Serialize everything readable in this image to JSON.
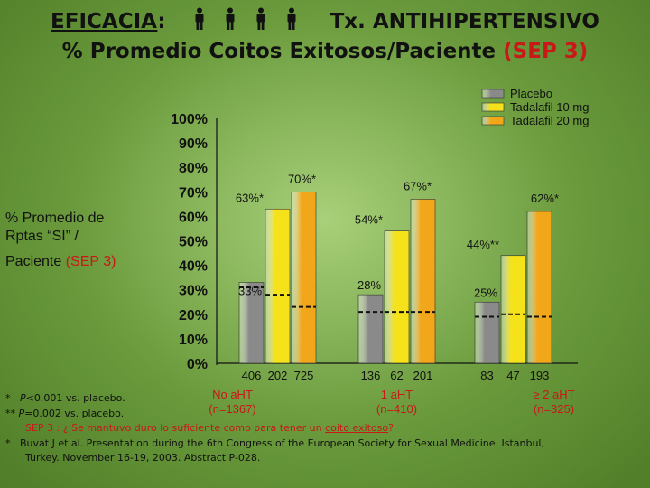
{
  "header": {
    "line1_prefix": "EFICACIA",
    "line1_colon": ":",
    "line1_suffix": "Tx. ANTIHIPERTENSIVO",
    "line2_main": "% Promedio Coitos Exitosos/Paciente",
    "line2_highlight": "(SEP 3)",
    "person_icon_count": 4
  },
  "y_axis_label": {
    "line1": "% Promedio de",
    "line2": "Rptas “SI” /",
    "line3": "Paciente",
    "line3_highlight": "(SEP 3)"
  },
  "chart_data": {
    "type": "bar",
    "y_ticks": [
      "0%",
      "10%",
      "20%",
      "30%",
      "40%",
      "50%",
      "60%",
      "70%",
      "80%",
      "90%",
      "100%"
    ],
    "ylim": [
      0,
      100
    ],
    "legend_position": "top-right",
    "series": [
      {
        "name": "Placebo",
        "color": "#8a8a8a"
      },
      {
        "name": "Tadalafil 10 mg",
        "color": "#f5e21a"
      },
      {
        "name": "Tadalafil 20 mg",
        "color": "#f2a71b"
      }
    ],
    "groups": [
      {
        "values": [
          33,
          63,
          70
        ],
        "labels": [
          "33%",
          "63%*",
          "70%*"
        ],
        "n_values": [
          "406",
          "202",
          "725"
        ],
        "category": "No aHT",
        "n_total": "(n=1367)"
      },
      {
        "values": [
          28,
          54,
          67
        ],
        "labels": [
          "28%",
          "54%*",
          "67%*"
        ],
        "n_values": [
          "136",
          "62",
          "201"
        ],
        "category": "1 aHT",
        "n_total": "(n=410)"
      },
      {
        "values": [
          25,
          44,
          62
        ],
        "labels": [
          "25%",
          "44%**",
          "62%*"
        ],
        "n_values": [
          "83",
          "47",
          "193"
        ],
        "category": "≥ 2 aHT",
        "n_total": "(n=325)"
      }
    ],
    "baseline_dashes": [
      [
        31,
        28,
        23
      ],
      [
        21,
        21,
        21
      ],
      [
        19,
        20,
        19
      ]
    ]
  },
  "footnotes": {
    "f1_marker": "*",
    "f1_p": "P",
    "f1_text": "<0.001 vs. placebo.",
    "f2_marker": "**",
    "f2_p": "P",
    "f2_text": "=0.002 vs. placebo.",
    "sep_text_a": "SEP 3 : ¿ Se mantuvo duro lo suficiente como para tener un",
    "sep_text_link": "coito exitoso",
    "sep_text_b": "?",
    "ref_marker": "*",
    "ref_line1": "Buvat J et al. Presentation during the 6th Congress of the European Society for Sexual Medicine. Istanbul,",
    "ref_line2": "Turkey. November 16-19, 2003. Abstract P-028."
  },
  "colors": {
    "placebo": "#8a8a8a",
    "tad10": "#f5e21a",
    "tad20": "#f2a71b",
    "highlight_red": "#c81818",
    "background": "#7aa84a"
  }
}
